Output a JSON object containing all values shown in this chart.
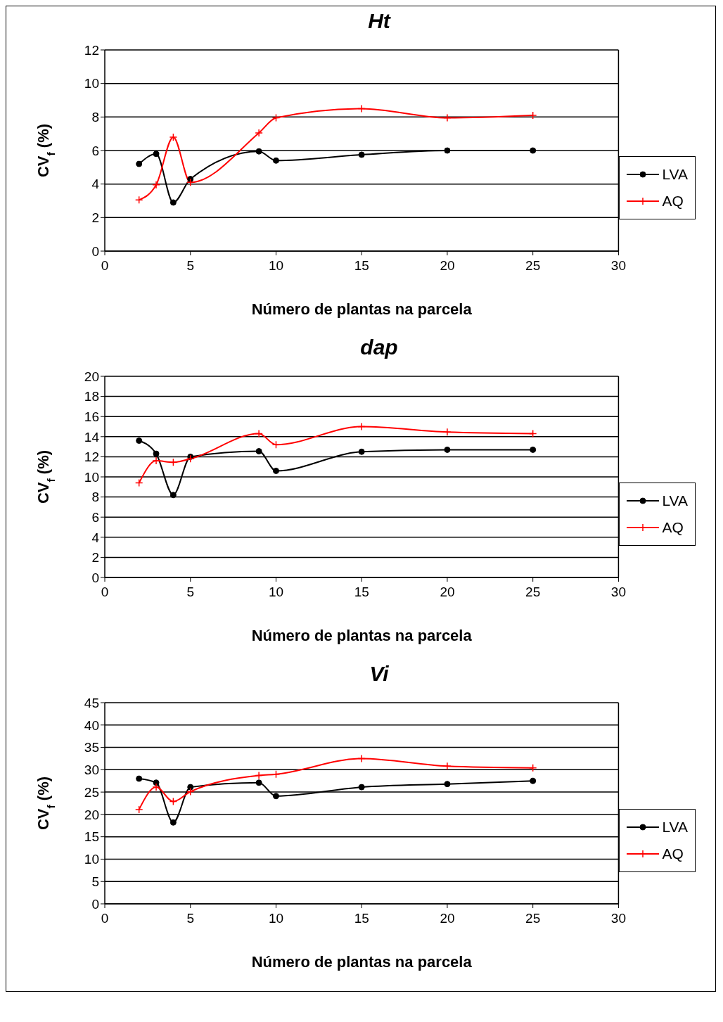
{
  "chart_data": [
    {
      "type": "line",
      "title": "Ht",
      "xlabel": "Número de plantas na parcela",
      "ylabel": "CV$_{f}$ (%)",
      "x": [
        2,
        3,
        4,
        5,
        9,
        10,
        15,
        20,
        25
      ],
      "xlim": [
        0,
        30
      ],
      "xticks": [
        0,
        5,
        10,
        15,
        20,
        25,
        30
      ],
      "ylim": [
        0,
        12
      ],
      "yticks": [
        0,
        2,
        4,
        6,
        8,
        10,
        12
      ],
      "grid": "y",
      "legend": "right",
      "series": [
        {
          "name": "LVA",
          "color": "#000000",
          "marker": "circle",
          "values": [
            5.2,
            5.8,
            2.9,
            4.3,
            5.95,
            5.4,
            5.75,
            6.0,
            6.0
          ]
        },
        {
          "name": "AQ",
          "color": "#ff0000",
          "marker": "cross",
          "values": [
            3.05,
            3.95,
            6.8,
            4.1,
            7.05,
            7.95,
            8.5,
            7.95,
            8.1
          ]
        }
      ]
    },
    {
      "type": "line",
      "title": "dap",
      "xlabel": "Número de plantas na parcela",
      "ylabel": "CV$_{f}$ (%)",
      "x": [
        2,
        3,
        4,
        5,
        9,
        10,
        15,
        20,
        25
      ],
      "xlim": [
        0,
        30
      ],
      "xticks": [
        0,
        5,
        10,
        15,
        20,
        25,
        30
      ],
      "ylim": [
        0,
        20
      ],
      "yticks": [
        0,
        2,
        4,
        6,
        8,
        10,
        12,
        14,
        16,
        18,
        20
      ],
      "grid": "y",
      "legend": "right",
      "series": [
        {
          "name": "LVA",
          "color": "#000000",
          "marker": "circle",
          "values": [
            13.6,
            12.3,
            8.2,
            12.0,
            12.55,
            10.6,
            12.5,
            12.7,
            12.7
          ]
        },
        {
          "name": "AQ",
          "color": "#ff0000",
          "marker": "cross",
          "values": [
            9.4,
            11.6,
            11.45,
            11.8,
            14.3,
            13.2,
            15.0,
            14.45,
            14.3
          ]
        }
      ]
    },
    {
      "type": "line",
      "title": "Vi",
      "xlabel": "Número de plantas na parcela",
      "ylabel": "CV$_{f}$ (%)",
      "x": [
        2,
        3,
        4,
        5,
        9,
        10,
        15,
        20,
        25
      ],
      "xlim": [
        0,
        30
      ],
      "xticks": [
        0,
        5,
        10,
        15,
        20,
        25,
        30
      ],
      "ylim": [
        0,
        45
      ],
      "yticks": [
        0,
        5,
        10,
        15,
        20,
        25,
        30,
        35,
        40,
        45
      ],
      "grid": "y",
      "legend": "right",
      "series": [
        {
          "name": "LVA",
          "color": "#000000",
          "marker": "circle",
          "values": [
            28.0,
            27.1,
            18.2,
            26.1,
            27.1,
            24.1,
            26.1,
            26.8,
            27.5
          ]
        },
        {
          "name": "AQ",
          "color": "#ff0000",
          "marker": "cross",
          "values": [
            21.1,
            26.1,
            22.9,
            25.1,
            28.7,
            29.0,
            32.5,
            30.8,
            30.4
          ]
        }
      ]
    }
  ]
}
